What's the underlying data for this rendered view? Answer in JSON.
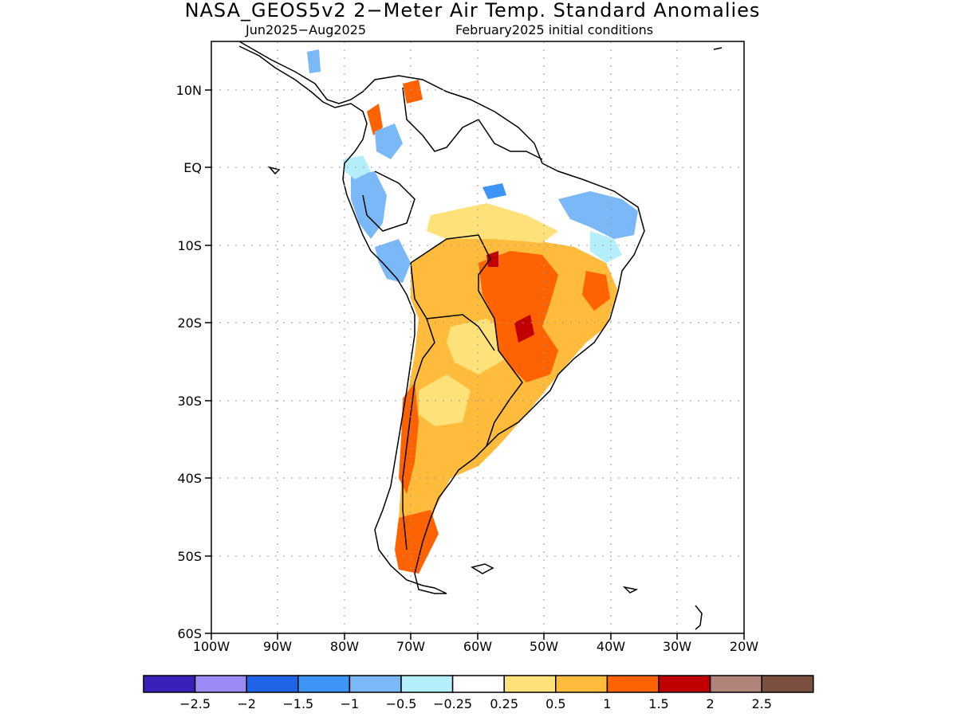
{
  "header": {
    "title": "NASA_GEOS5v2 2−Meter Air Temp. Standard Anomalies",
    "period": "Jun2025−Aug2025",
    "initial_conditions": "February2025 initial conditions"
  },
  "map": {
    "region": "South America",
    "lat_labels": [
      "10N",
      "EQ",
      "10S",
      "20S",
      "30S",
      "40S",
      "50S",
      "60S"
    ],
    "lon_labels": [
      "100W",
      "90W",
      "80W",
      "70W",
      "60W",
      "50W",
      "40W",
      "30W",
      "20W"
    ],
    "grid": "dotted"
  },
  "colorbar": {
    "colors": [
      "#3a1fb8",
      "#9b8af4",
      "#1f64e6",
      "#3c95f5",
      "#7ab8f7",
      "#b4eefa",
      "#ffffff",
      "#ffe17a",
      "#ffbb3c",
      "#ff6200",
      "#c00000",
      "#b08478",
      "#7a4f40"
    ],
    "labels": [
      "−2.5",
      "−2",
      "−1.5",
      "−1",
      "−0.5",
      "−0.25",
      "0.25",
      "0.5",
      "1",
      "1.5",
      "2",
      "2.5"
    ]
  }
}
